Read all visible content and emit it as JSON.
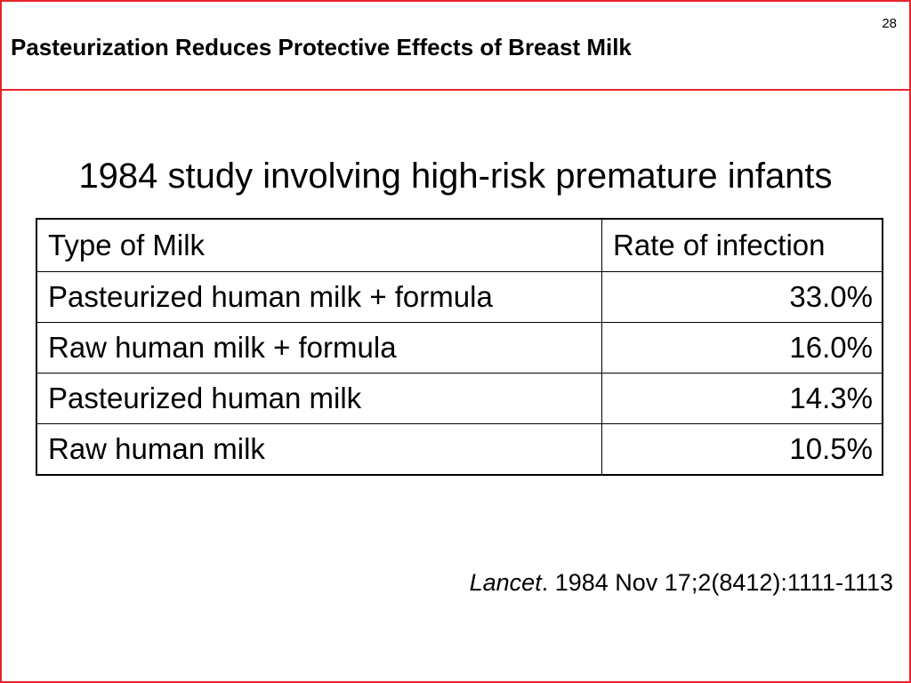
{
  "slide": {
    "number": "28",
    "title": "Pasteurization Reduces Protective Effects of Breast Milk",
    "subtitle": "1984 study involving high-risk premature infants"
  },
  "table": {
    "headers": [
      "Type of Milk",
      "Rate of infection"
    ],
    "rows": [
      [
        "Pasteurized human milk + formula",
        "33.0%"
      ],
      [
        "Raw human milk + formula",
        "16.0%"
      ],
      [
        "Pasteurized human milk",
        "14.3%"
      ],
      [
        "Raw human milk",
        "10.5%"
      ]
    ]
  },
  "citation": {
    "journal": "Lancet",
    "details": ". 1984 Nov 17;2(8412):1111-1113"
  },
  "colors": {
    "accent": "#e8242a",
    "text": "#000000",
    "background": "#ffffff"
  }
}
